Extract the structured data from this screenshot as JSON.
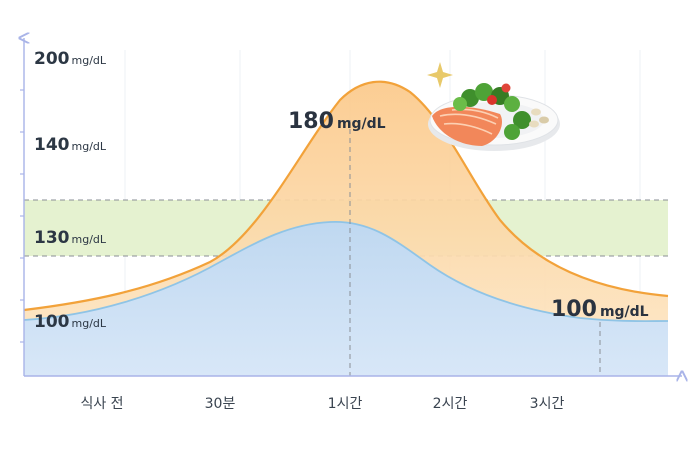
{
  "chart_data": {
    "type": "area",
    "title": "",
    "xlabel": "",
    "ylabel": "",
    "unit": "mg/dL",
    "x_ticks": [
      "식사 전",
      "30분",
      "1시간",
      "2시간",
      "3시간"
    ],
    "y_ticks": [
      {
        "value": "200",
        "unit": "mg/dL"
      },
      {
        "value": "140",
        "unit": "mg/dL"
      },
      {
        "value": "130",
        "unit": "mg/dL"
      },
      {
        "value": "100",
        "unit": "mg/dL"
      }
    ],
    "normal_band": [
      130,
      140
    ],
    "series": [
      {
        "color": "#f2a23a",
        "fill": "#fbd9a6",
        "points": [
          [
            0,
            100
          ],
          [
            0.5,
            118
          ],
          [
            1,
            176
          ],
          [
            1.08,
            180
          ],
          [
            1.5,
            150
          ],
          [
            2,
            120
          ],
          [
            3,
            103
          ],
          [
            3.5,
            100
          ]
        ]
      },
      {
        "color": "#8fc4e6",
        "fill": "#c7dff6",
        "points": [
          [
            0,
            100
          ],
          [
            0.5,
            110
          ],
          [
            1,
            133
          ],
          [
            1.5,
            118
          ],
          [
            2,
            104
          ],
          [
            3,
            99
          ],
          [
            3.5,
            98
          ]
        ]
      }
    ],
    "annotations": [
      {
        "value": "180",
        "unit": "mg/dL"
      },
      {
        "value": "100",
        "unit": "mg/dL"
      }
    ],
    "colors": {
      "axis": "#a9b4e8",
      "band": "#e3f1cf",
      "dash": "#8a8f96"
    },
    "icons": [
      "salad-plate-icon",
      "sparkle-icon"
    ]
  }
}
